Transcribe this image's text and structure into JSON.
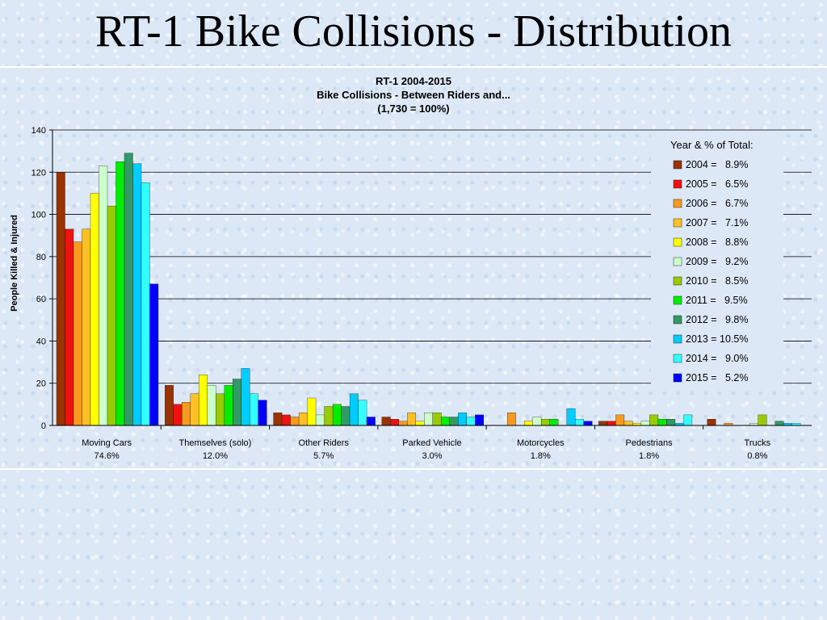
{
  "slide": {
    "title": "RT-1 Bike Collisions - Distribution"
  },
  "colors": {
    "years": [
      "#993300",
      "#ee1111",
      "#f79a1e",
      "#ffc025",
      "#ffff00",
      "#ccffcc",
      "#99cc00",
      "#00ee00",
      "#339966",
      "#00ccff",
      "#33ffff",
      "#0000ff"
    ]
  },
  "chart_data": {
    "type": "bar",
    "title_lines": [
      "RT-1 2004-2015",
      "Bike Collisions - Between Riders and...",
      "(1,730 = 100%)"
    ],
    "ylabel": "People Killed & Injured",
    "xlabel": "",
    "ylim": [
      0,
      140
    ],
    "yticks": [
      0,
      20,
      40,
      60,
      80,
      100,
      120,
      140
    ],
    "grid": true,
    "legend_title": "Year & % of Total:",
    "legend_position": "right",
    "categories": [
      "Moving Cars",
      "Themselves (solo)",
      "Other Riders",
      "Parked Vehicle",
      "Motorcycles",
      "Pedestrians",
      "Trucks"
    ],
    "category_percents": [
      "74.6%",
      "12.0%",
      "5.7%",
      "3.0%",
      "1.8%",
      "1.8%",
      "0.8%"
    ],
    "series": [
      {
        "name": "2004",
        "legend_text": "2004 =   8.9%",
        "values": [
          120,
          19,
          6,
          4,
          0,
          2,
          3
        ]
      },
      {
        "name": "2005",
        "legend_text": "2005 =   6.5%",
        "values": [
          93,
          10,
          5,
          3,
          0,
          2,
          0
        ]
      },
      {
        "name": "2006",
        "legend_text": "2006 =   6.7%",
        "values": [
          87,
          11,
          4,
          2,
          6,
          5,
          1
        ]
      },
      {
        "name": "2007",
        "legend_text": "2007 =   7.1%",
        "values": [
          93,
          15,
          6,
          6,
          0,
          2,
          0
        ]
      },
      {
        "name": "2008",
        "legend_text": "2008 =   8.8%",
        "values": [
          110,
          24,
          13,
          2,
          2,
          1,
          0
        ]
      },
      {
        "name": "2009",
        "legend_text": "2009 =   9.2%",
        "values": [
          123,
          19,
          5,
          6,
          4,
          2,
          1
        ]
      },
      {
        "name": "2010",
        "legend_text": "2010 =   8.5%",
        "values": [
          104,
          15,
          9,
          6,
          3,
          5,
          5
        ]
      },
      {
        "name": "2011",
        "legend_text": "2011 =   9.5%",
        "values": [
          125,
          19,
          10,
          4,
          3,
          3,
          0
        ]
      },
      {
        "name": "2012",
        "legend_text": "2012 =   9.8%",
        "values": [
          129,
          22,
          9,
          4,
          0,
          3,
          2
        ]
      },
      {
        "name": "2013",
        "legend_text": "2013 = 10.5%",
        "values": [
          124,
          27,
          15,
          6,
          8,
          1,
          1
        ]
      },
      {
        "name": "2014",
        "legend_text": "2014 =   9.0%",
        "values": [
          115,
          15,
          12,
          4,
          3,
          5,
          1
        ]
      },
      {
        "name": "2015",
        "legend_text": "2015 =   5.2%",
        "values": [
          67,
          12,
          4,
          5,
          2,
          0,
          0
        ]
      }
    ]
  }
}
